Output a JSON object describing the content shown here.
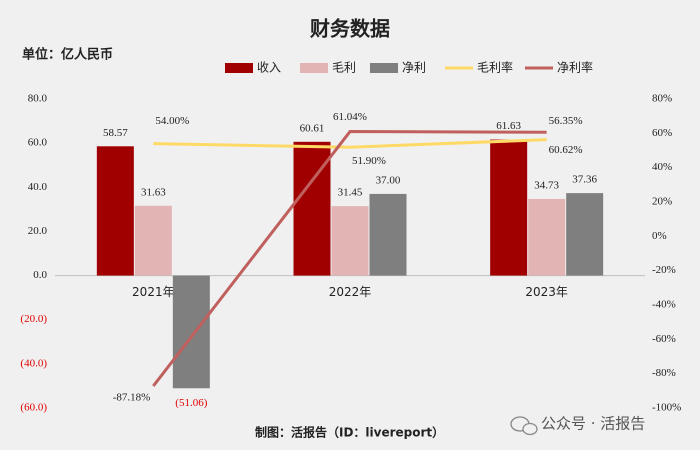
{
  "chart_data": {
    "type": "bar",
    "title": "财务数据",
    "unit": "单位：亿人民币",
    "footer": "制图：活报告（ID：livereport）",
    "watermark": "公众号 · 活报告",
    "categories": [
      "2021年",
      "2022年",
      "2023年"
    ],
    "series": [
      {
        "name": "收入",
        "type": "bar",
        "color": "#a00000",
        "values": [
          58.57,
          60.61,
          61.63
        ],
        "value_labels": [
          "58.57",
          "60.61",
          "61.63"
        ]
      },
      {
        "name": "毛利",
        "type": "bar",
        "color": "#e2b4b4",
        "values": [
          31.63,
          31.45,
          34.73
        ],
        "value_labels": [
          "31.63",
          "31.45",
          "34.73"
        ]
      },
      {
        "name": "净利",
        "type": "bar",
        "color": "#7f7f7f",
        "values": [
          -51.06,
          37.0,
          37.36
        ],
        "value_labels": [
          "(51.06)",
          "37.00",
          "37.36"
        ]
      },
      {
        "name": "毛利率",
        "type": "line",
        "axis": "y2",
        "color": "#ffd966",
        "values": [
          54.0,
          51.9,
          56.35
        ],
        "value_labels": [
          "54.00%",
          "51.90%",
          "56.35%"
        ]
      },
      {
        "name": "净利率",
        "type": "line",
        "axis": "y2",
        "color": "#c0605e",
        "values": [
          -87.18,
          61.04,
          60.62
        ],
        "value_labels": [
          "-87.18%",
          "61.04%",
          "60.62%"
        ]
      }
    ],
    "ylim": [
      -60,
      80
    ],
    "yticks": [
      {
        "value": 80,
        "label": "80.0"
      },
      {
        "value": 60,
        "label": "60.0"
      },
      {
        "value": 40,
        "label": "40.0"
      },
      {
        "value": 20,
        "label": "20.0"
      },
      {
        "value": 0,
        "label": "0.0"
      },
      {
        "value": -20,
        "label": "(20.0)"
      },
      {
        "value": -40,
        "label": "(40.0)"
      },
      {
        "value": -60,
        "label": "(60.0)"
      }
    ],
    "y2lim": [
      -100,
      80
    ],
    "y2ticks": [
      {
        "value": 80,
        "label": "80%"
      },
      {
        "value": 60,
        "label": "60%"
      },
      {
        "value": 40,
        "label": "40%"
      },
      {
        "value": 20,
        "label": "20%"
      },
      {
        "value": 0,
        "label": "0%"
      },
      {
        "value": -20,
        "label": "-20%"
      },
      {
        "value": -40,
        "label": "-40%"
      },
      {
        "value": -60,
        "label": "-60%"
      },
      {
        "value": -80,
        "label": "-80%"
      },
      {
        "value": -100,
        "label": "-100%"
      }
    ],
    "grid": false,
    "negative_color": "#e00000",
    "legend": "top"
  }
}
